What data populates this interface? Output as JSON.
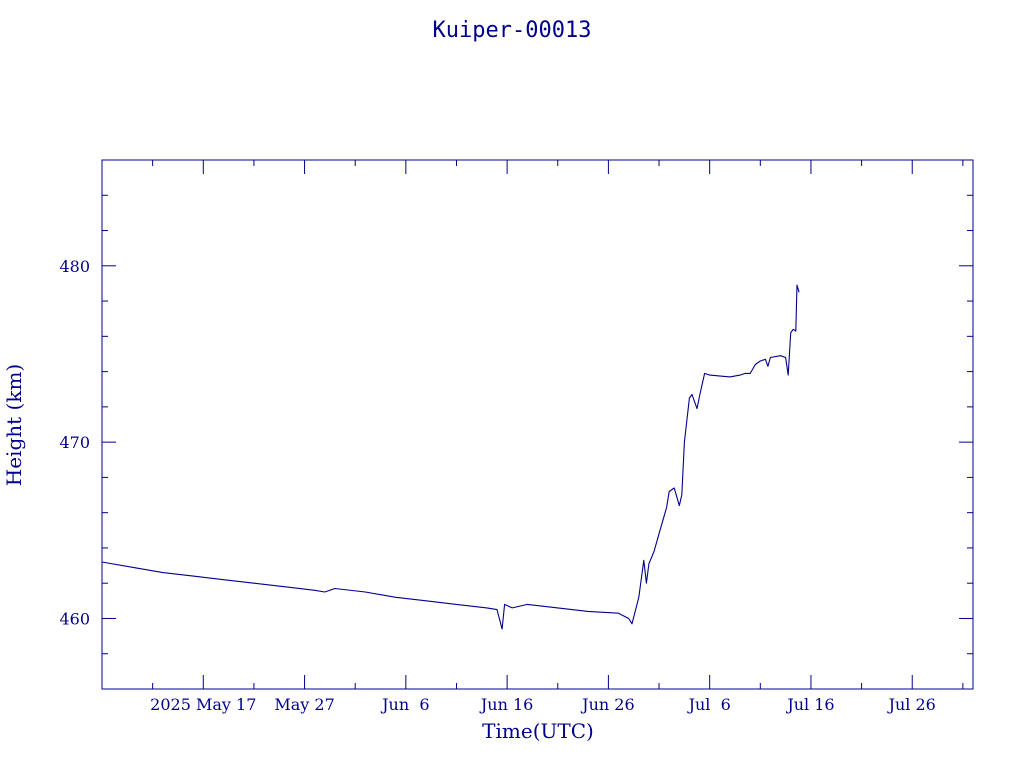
{
  "chart_data": {
    "type": "line",
    "title": "Kuiper-00013",
    "xlabel": "Time(UTC)",
    "ylabel": "Height (km)",
    "x_type": "date",
    "xlim": [
      "2025-05-07",
      "2025-08-01"
    ],
    "ylim": [
      456,
      486
    ],
    "x_ticks": [
      {
        "date": "2025-05-17",
        "label": "2025 May 17"
      },
      {
        "date": "2025-05-27",
        "label": "May 27"
      },
      {
        "date": "2025-06-06",
        "label": "Jun  6"
      },
      {
        "date": "2025-06-16",
        "label": "Jun 16"
      },
      {
        "date": "2025-06-26",
        "label": "Jun 26"
      },
      {
        "date": "2025-07-06",
        "label": "Jul  6"
      },
      {
        "date": "2025-07-16",
        "label": "Jul 16"
      },
      {
        "date": "2025-07-26",
        "label": "Jul 26"
      }
    ],
    "y_ticks": [
      {
        "value": 460,
        "label": "460"
      },
      {
        "value": 470,
        "label": "470"
      },
      {
        "value": 480,
        "label": "480"
      }
    ],
    "grid": false,
    "colors": {
      "axis": "#00008b",
      "line": "#00008b",
      "text": "#00008b"
    },
    "series": [
      {
        "points": [
          [
            "2025-05-07T00:00",
            463.2
          ],
          [
            "2025-05-10T00:00",
            462.9
          ],
          [
            "2025-05-13T00:00",
            462.6
          ],
          [
            "2025-05-16T00:00",
            462.4
          ],
          [
            "2025-05-19T00:00",
            462.2
          ],
          [
            "2025-05-22T00:00",
            462.0
          ],
          [
            "2025-05-25T00:00",
            461.8
          ],
          [
            "2025-05-28T00:00",
            461.6
          ],
          [
            "2025-05-29T00:00",
            461.5
          ],
          [
            "2025-05-30T00:00",
            461.7
          ],
          [
            "2025-06-02T00:00",
            461.5
          ],
          [
            "2025-06-05T00:00",
            461.2
          ],
          [
            "2025-06-08T00:00",
            461.0
          ],
          [
            "2025-06-11T00:00",
            460.8
          ],
          [
            "2025-06-14T00:00",
            460.6
          ],
          [
            "2025-06-15T00:00",
            460.5
          ],
          [
            "2025-06-15T12:00",
            459.4
          ],
          [
            "2025-06-15T18:00",
            460.8
          ],
          [
            "2025-06-16T12:00",
            460.6
          ],
          [
            "2025-06-18T00:00",
            460.8
          ],
          [
            "2025-06-21T00:00",
            460.6
          ],
          [
            "2025-06-24T00:00",
            460.4
          ],
          [
            "2025-06-27T00:00",
            460.3
          ],
          [
            "2025-06-28T00:00",
            460.0
          ],
          [
            "2025-06-28T08:00",
            459.7
          ],
          [
            "2025-06-29T00:00",
            461.2
          ],
          [
            "2025-06-29T12:00",
            463.3
          ],
          [
            "2025-06-29T18:00",
            462.0
          ],
          [
            "2025-06-30T00:00",
            463.1
          ],
          [
            "2025-06-30T12:00",
            463.8
          ],
          [
            "2025-07-01T00:00",
            464.8
          ],
          [
            "2025-07-01T12:00",
            465.8
          ],
          [
            "2025-07-01T18:00",
            466.3
          ],
          [
            "2025-07-02T00:00",
            467.2
          ],
          [
            "2025-07-02T12:00",
            467.4
          ],
          [
            "2025-07-02T18:00",
            466.9
          ],
          [
            "2025-07-03T00:00",
            466.4
          ],
          [
            "2025-07-03T06:00",
            467.0
          ],
          [
            "2025-07-03T12:00",
            470.0
          ],
          [
            "2025-07-04T00:00",
            472.5
          ],
          [
            "2025-07-04T06:00",
            472.7
          ],
          [
            "2025-07-04T12:00",
            472.3
          ],
          [
            "2025-07-04T18:00",
            471.9
          ],
          [
            "2025-07-05T00:00",
            472.6
          ],
          [
            "2025-07-05T12:00",
            473.9
          ],
          [
            "2025-07-06T00:00",
            473.8
          ],
          [
            "2025-07-08T00:00",
            473.7
          ],
          [
            "2025-07-09T00:00",
            473.8
          ],
          [
            "2025-07-09T12:00",
            473.9
          ],
          [
            "2025-07-10T00:00",
            473.9
          ],
          [
            "2025-07-10T12:00",
            474.4
          ],
          [
            "2025-07-11T00:00",
            474.6
          ],
          [
            "2025-07-11T12:00",
            474.7
          ],
          [
            "2025-07-11T18:00",
            474.3
          ],
          [
            "2025-07-12T00:00",
            474.8
          ],
          [
            "2025-07-13T00:00",
            474.9
          ],
          [
            "2025-07-13T12:00",
            474.8
          ],
          [
            "2025-07-13T18:00",
            473.8
          ],
          [
            "2025-07-14T00:00",
            476.2
          ],
          [
            "2025-07-14T06:00",
            476.4
          ],
          [
            "2025-07-14T12:00",
            476.3
          ],
          [
            "2025-07-14T15:00",
            478.9
          ],
          [
            "2025-07-14T20:00",
            478.5
          ]
        ]
      }
    ]
  }
}
